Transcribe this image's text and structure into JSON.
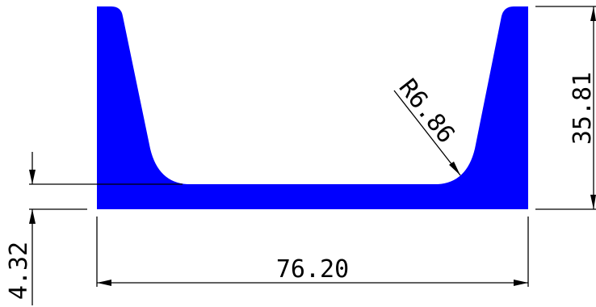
{
  "colors": {
    "profile_fill": "#0000ff",
    "line": "#000000",
    "background": "#ffffff"
  },
  "dimensions": {
    "width": "76.20",
    "height": "35.81",
    "thickness": "4.32",
    "radius": "R6.86"
  }
}
